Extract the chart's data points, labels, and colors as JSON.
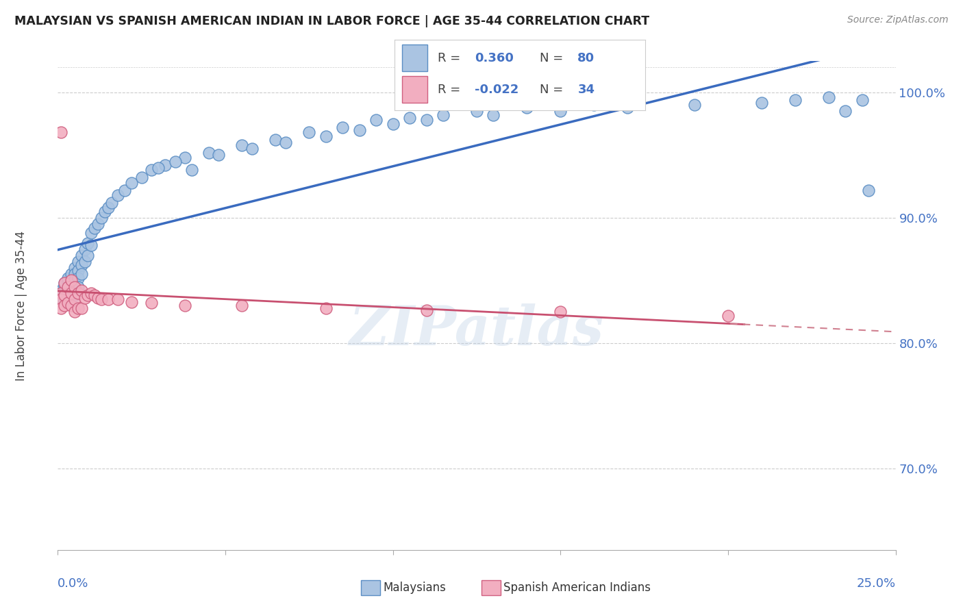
{
  "title": "MALAYSIAN VS SPANISH AMERICAN INDIAN IN LABOR FORCE | AGE 35-44 CORRELATION CHART",
  "source": "Source: ZipAtlas.com",
  "ylabel": "In Labor Force | Age 35-44",
  "xlim": [
    0.0,
    0.25
  ],
  "ylim": [
    0.635,
    1.025
  ],
  "ytick_vals": [
    0.7,
    0.8,
    0.9,
    1.0
  ],
  "ytick_labels": [
    "70.0%",
    "80.0%",
    "90.0%",
    "100.0%"
  ],
  "r_malaysian": 0.36,
  "n_malaysian": 80,
  "r_spanish": -0.022,
  "n_spanish": 34,
  "malaysian_color": "#aac4e2",
  "malaysian_edge": "#5b8ec4",
  "spanish_color": "#f2aec0",
  "spanish_edge": "#d06080",
  "trend_malaysian_color": "#3a6bbf",
  "trend_spanish_color_solid": "#c85070",
  "trend_spanish_color_dash": "#d08090",
  "watermark_color": "#b8cce4",
  "malaysian_x": [
    0.001,
    0.001,
    0.001,
    0.001,
    0.002,
    0.002,
    0.002,
    0.002,
    0.002,
    0.003,
    0.003,
    0.003,
    0.003,
    0.003,
    0.004,
    0.004,
    0.004,
    0.004,
    0.005,
    0.005,
    0.005,
    0.005,
    0.005,
    0.006,
    0.006,
    0.006,
    0.006,
    0.007,
    0.007,
    0.007,
    0.008,
    0.008,
    0.009,
    0.009,
    0.01,
    0.01,
    0.011,
    0.012,
    0.013,
    0.014,
    0.015,
    0.016,
    0.018,
    0.02,
    0.022,
    0.025,
    0.028,
    0.032,
    0.038,
    0.045,
    0.055,
    0.065,
    0.075,
    0.085,
    0.095,
    0.105,
    0.115,
    0.125,
    0.14,
    0.16,
    0.03,
    0.035,
    0.04,
    0.048,
    0.058,
    0.068,
    0.08,
    0.09,
    0.1,
    0.11,
    0.13,
    0.15,
    0.17,
    0.19,
    0.21,
    0.22,
    0.23,
    0.235,
    0.24,
    0.242
  ],
  "malaysian_y": [
    0.838,
    0.84,
    0.842,
    0.836,
    0.843,
    0.846,
    0.848,
    0.834,
    0.84,
    0.85,
    0.852,
    0.844,
    0.838,
    0.835,
    0.855,
    0.848,
    0.842,
    0.836,
    0.86,
    0.855,
    0.85,
    0.845,
    0.838,
    0.865,
    0.858,
    0.852,
    0.845,
    0.87,
    0.862,
    0.855,
    0.875,
    0.865,
    0.88,
    0.87,
    0.888,
    0.878,
    0.892,
    0.895,
    0.9,
    0.905,
    0.908,
    0.912,
    0.918,
    0.922,
    0.928,
    0.932,
    0.938,
    0.942,
    0.948,
    0.952,
    0.958,
    0.962,
    0.968,
    0.972,
    0.978,
    0.98,
    0.982,
    0.985,
    0.988,
    0.99,
    0.94,
    0.945,
    0.938,
    0.95,
    0.955,
    0.96,
    0.965,
    0.97,
    0.975,
    0.978,
    0.982,
    0.985,
    0.988,
    0.99,
    0.992,
    0.994,
    0.996,
    0.985,
    0.994,
    0.922
  ],
  "spanish_x": [
    0.001,
    0.001,
    0.001,
    0.002,
    0.002,
    0.002,
    0.003,
    0.003,
    0.004,
    0.004,
    0.004,
    0.005,
    0.005,
    0.005,
    0.006,
    0.006,
    0.007,
    0.007,
    0.008,
    0.009,
    0.01,
    0.011,
    0.012,
    0.013,
    0.015,
    0.018,
    0.022,
    0.028,
    0.038,
    0.055,
    0.08,
    0.11,
    0.15,
    0.2
  ],
  "spanish_y": [
    0.84,
    0.835,
    0.828,
    0.848,
    0.838,
    0.83,
    0.845,
    0.832,
    0.85,
    0.84,
    0.83,
    0.845,
    0.835,
    0.825,
    0.84,
    0.828,
    0.842,
    0.828,
    0.836,
    0.838,
    0.84,
    0.838,
    0.836,
    0.835,
    0.835,
    0.835,
    0.833,
    0.832,
    0.83,
    0.83,
    0.828,
    0.826,
    0.825,
    0.822
  ],
  "spanish_extra_y": [
    0.968
  ],
  "spanish_extra_x": [
    0.001
  ]
}
